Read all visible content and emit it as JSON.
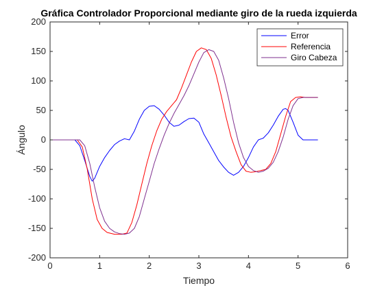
{
  "chart_data": {
    "type": "line",
    "title": "Gráfica Controlador Proporcional mediante giro de la rueda izquierda",
    "xlabel": "Tiempo",
    "ylabel": "Ángulo",
    "xlim": [
      0,
      6
    ],
    "ylim": [
      -200,
      200
    ],
    "xticks": [
      "0",
      "1",
      "2",
      "3",
      "4",
      "5",
      "6"
    ],
    "yticks": [
      "-200",
      "-150",
      "-100",
      "-50",
      "0",
      "50",
      "100",
      "150",
      "200"
    ],
    "grid": false,
    "legend_position": "top-right",
    "series": [
      {
        "name": "Error",
        "color": "#0000ff",
        "x": [
          0,
          0.5,
          0.6,
          0.7,
          0.8,
          0.85,
          0.9,
          1.0,
          1.1,
          1.2,
          1.3,
          1.4,
          1.5,
          1.6,
          1.7,
          1.8,
          1.9,
          2.0,
          2.1,
          2.2,
          2.3,
          2.4,
          2.5,
          2.6,
          2.7,
          2.8,
          2.9,
          3.0,
          3.1,
          3.2,
          3.3,
          3.4,
          3.5,
          3.6,
          3.7,
          3.8,
          3.9,
          4.0,
          4.1,
          4.2,
          4.3,
          4.4,
          4.5,
          4.6,
          4.7,
          4.75,
          4.8,
          4.9,
          5.0,
          5.1,
          5.2,
          5.4
        ],
        "y": [
          0,
          0,
          -10,
          -35,
          -62,
          -70,
          -65,
          -45,
          -30,
          -18,
          -8,
          -2,
          2,
          0,
          15,
          35,
          50,
          57,
          58,
          52,
          42,
          30,
          23,
          25,
          31,
          36,
          37,
          30,
          10,
          -5,
          -20,
          -35,
          -46,
          -55,
          -60,
          -55,
          -45,
          -30,
          -12,
          0,
          3,
          12,
          25,
          40,
          52,
          53,
          50,
          30,
          8,
          0,
          0,
          0
        ]
      },
      {
        "name": "Referencia",
        "color": "#ff0000",
        "x": [
          0,
          0.55,
          0.65,
          0.75,
          0.85,
          0.95,
          1.05,
          1.15,
          1.3,
          1.45,
          1.55,
          1.65,
          1.75,
          1.85,
          1.95,
          2.05,
          2.15,
          2.25,
          2.35,
          2.45,
          2.55,
          2.65,
          2.75,
          2.85,
          2.95,
          3.05,
          3.15,
          3.25,
          3.35,
          3.45,
          3.55,
          3.65,
          3.75,
          3.85,
          3.95,
          4.05,
          4.15,
          4.25,
          4.35,
          4.45,
          4.55,
          4.65,
          4.75,
          4.85,
          4.95,
          5.05,
          5.15,
          5.4
        ],
        "y": [
          0,
          0,
          -12,
          -50,
          -100,
          -135,
          -150,
          -157,
          -160,
          -160,
          -158,
          -140,
          -110,
          -75,
          -40,
          -10,
          15,
          35,
          48,
          58,
          68,
          88,
          110,
          132,
          150,
          156,
          153,
          138,
          110,
          75,
          38,
          5,
          -20,
          -42,
          -53,
          -55,
          -54,
          -52,
          -50,
          -40,
          -20,
          10,
          40,
          65,
          72,
          73,
          72,
          72
        ]
      },
      {
        "name": "Giro Cabeza",
        "color": "#7e2f8e",
        "x": [
          0,
          0.6,
          0.7,
          0.8,
          0.9,
          1.0,
          1.1,
          1.2,
          1.3,
          1.4,
          1.5,
          1.6,
          1.7,
          1.8,
          1.9,
          2.0,
          2.1,
          2.2,
          2.3,
          2.4,
          2.5,
          2.6,
          2.7,
          2.8,
          2.9,
          3.0,
          3.1,
          3.2,
          3.3,
          3.4,
          3.5,
          3.6,
          3.7,
          3.8,
          3.9,
          4.0,
          4.1,
          4.2,
          4.3,
          4.4,
          4.5,
          4.6,
          4.7,
          4.8,
          4.9,
          5.0,
          5.1,
          5.2,
          5.4
        ],
        "y": [
          0,
          0,
          -10,
          -40,
          -80,
          -115,
          -138,
          -150,
          -156,
          -159,
          -160,
          -158,
          -150,
          -130,
          -100,
          -70,
          -40,
          -15,
          8,
          28,
          45,
          60,
          75,
          92,
          112,
          132,
          148,
          153,
          150,
          135,
          105,
          70,
          30,
          -5,
          -30,
          -45,
          -52,
          -55,
          -53,
          -48,
          -38,
          -20,
          5,
          35,
          58,
          70,
          72,
          72,
          72
        ]
      }
    ]
  }
}
